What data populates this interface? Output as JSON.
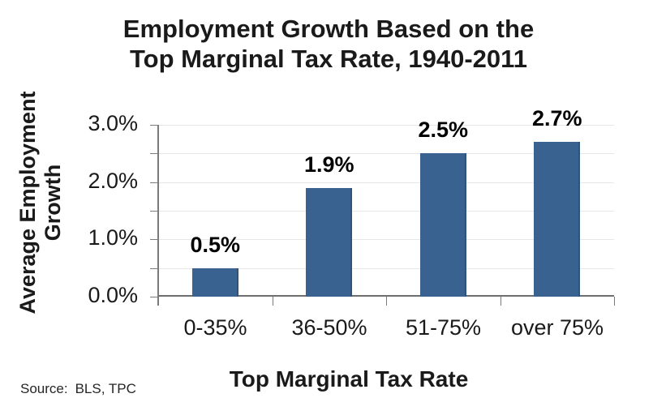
{
  "chart_data": {
    "type": "bar",
    "title": "Employment Growth Based on the Top Marginal Tax Rate, 1940-2011",
    "title_lines": [
      "Employment Growth Based on the",
      "Top Marginal Tax Rate, 1940-2011"
    ],
    "categories": [
      "0-35%",
      "36-50%",
      "51-75%",
      "over 75%"
    ],
    "values": [
      0.5,
      1.9,
      2.5,
      2.7
    ],
    "value_labels": [
      "0.5%",
      "1.9%",
      "2.5%",
      "2.7%"
    ],
    "xlabel": "Top Marginal Tax Rate",
    "ylabel": "Average Employment Growth",
    "ylabel_lines": [
      "Average Employment",
      "Growth"
    ],
    "y_ticks": [
      {
        "value": 3.0,
        "label": "3.0%"
      },
      {
        "value": 2.0,
        "label": "2.0%"
      },
      {
        "value": 1.0,
        "label": "1.0%"
      },
      {
        "value": 0.0,
        "label": "0.0%"
      }
    ],
    "ylim": [
      0,
      3.0
    ],
    "gridline_step": 0.5,
    "grid_on": true,
    "legend": "none",
    "bar_color": "#3a6291",
    "source": {
      "label": "Source:",
      "text": "BLS, TPC"
    }
  }
}
